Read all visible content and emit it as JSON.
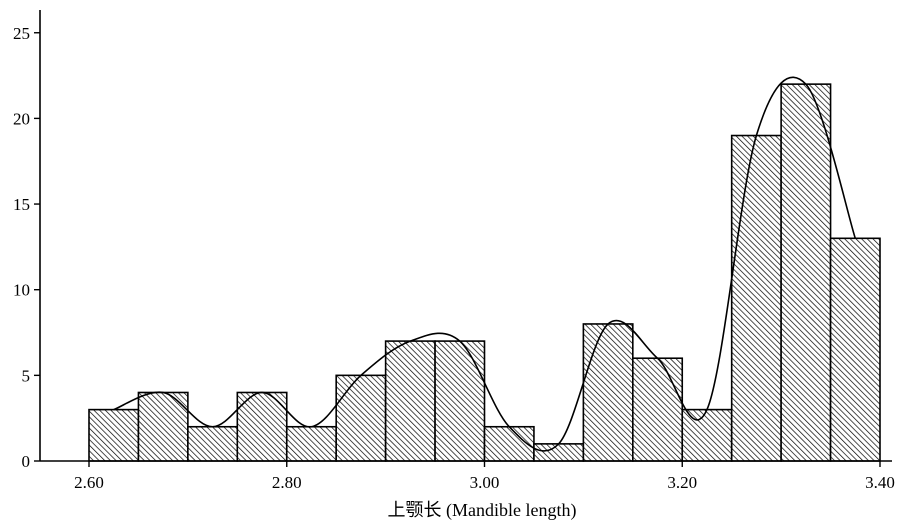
{
  "chart_data": {
    "type": "bar",
    "title": "",
    "xlabel": "上颚长  (Mandible length)",
    "ylabel": "",
    "xlim": [
      2.6,
      3.4
    ],
    "ylim": [
      0,
      26
    ],
    "bin_width": 0.05,
    "bins": [
      {
        "x0": 2.6,
        "x1": 2.65,
        "count": 3
      },
      {
        "x0": 2.65,
        "x1": 2.7,
        "count": 4
      },
      {
        "x0": 2.7,
        "x1": 2.75,
        "count": 2
      },
      {
        "x0": 2.75,
        "x1": 2.8,
        "count": 4
      },
      {
        "x0": 2.8,
        "x1": 2.85,
        "count": 2
      },
      {
        "x0": 2.85,
        "x1": 2.9,
        "count": 5
      },
      {
        "x0": 2.9,
        "x1": 2.95,
        "count": 7
      },
      {
        "x0": 2.95,
        "x1": 3.0,
        "count": 7
      },
      {
        "x0": 3.0,
        "x1": 3.05,
        "count": 2
      },
      {
        "x0": 3.05,
        "x1": 3.1,
        "count": 1
      },
      {
        "x0": 3.1,
        "x1": 3.15,
        "count": 8
      },
      {
        "x0": 3.15,
        "x1": 3.2,
        "count": 6
      },
      {
        "x0": 3.2,
        "x1": 3.25,
        "count": 3
      },
      {
        "x0": 3.25,
        "x1": 3.3,
        "count": 19
      },
      {
        "x0": 3.3,
        "x1": 3.35,
        "count": 22
      },
      {
        "x0": 3.35,
        "x1": 3.4,
        "count": 13
      }
    ],
    "x_ticks": [
      {
        "value": 2.6,
        "label": "2.60"
      },
      {
        "value": 2.8,
        "label": "2.80"
      },
      {
        "value": 3.0,
        "label": "3.00"
      },
      {
        "value": 3.2,
        "label": "3.20"
      },
      {
        "value": 3.4,
        "label": "3.40"
      }
    ],
    "y_ticks": [
      {
        "value": 0,
        "label": "0"
      },
      {
        "value": 5,
        "label": "5"
      },
      {
        "value": 10,
        "label": "10"
      },
      {
        "value": 15,
        "label": "15"
      },
      {
        "value": 20,
        "label": "20"
      },
      {
        "value": 25,
        "label": "25"
      }
    ],
    "fit_curve": {
      "x": [
        2.625,
        2.675,
        2.725,
        2.775,
        2.825,
        2.875,
        2.925,
        2.975,
        3.025,
        3.075,
        3.125,
        3.175,
        3.225,
        3.275,
        3.325,
        3.375
      ],
      "y": [
        3,
        4,
        2,
        4,
        2,
        5,
        7,
        7,
        2,
        1,
        8,
        6,
        3,
        19,
        22,
        13
      ]
    },
    "grid": false,
    "legend": "none",
    "bar_fill": "#ffffff",
    "bar_hatch": "#000000",
    "line_color": "#000000"
  }
}
